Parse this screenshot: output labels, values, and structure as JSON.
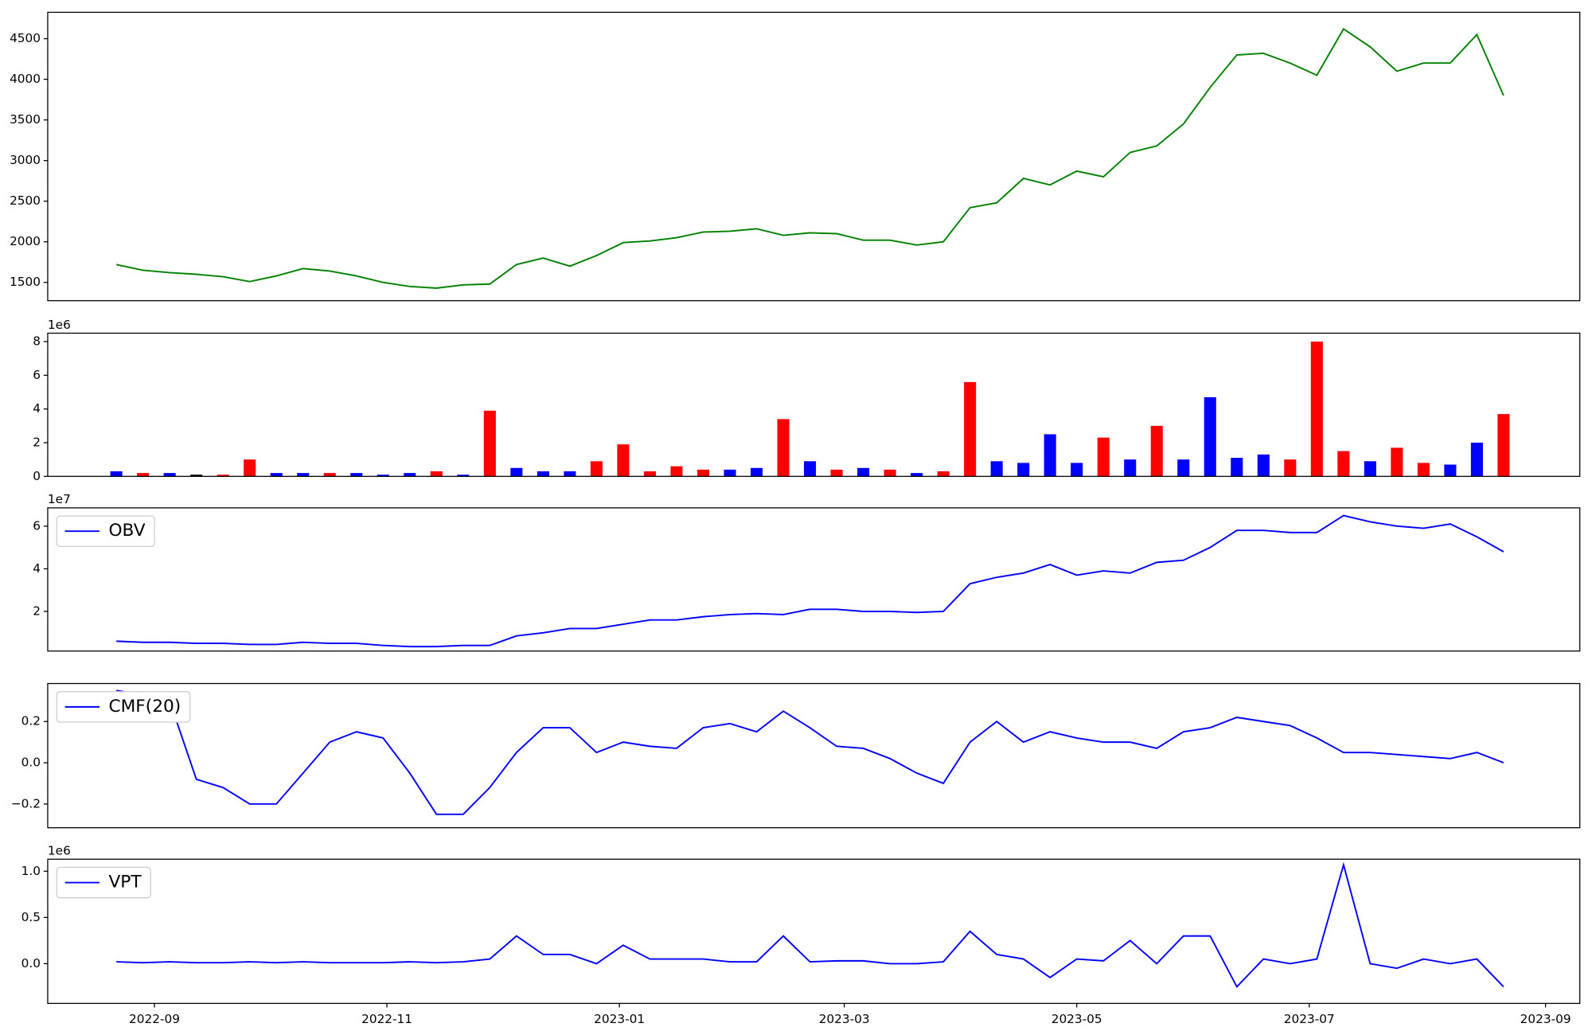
{
  "chart_data": [
    {
      "type": "line",
      "color": "green",
      "x": [
        19226,
        19233,
        19240,
        19247,
        19254,
        19261,
        19268,
        19275,
        19282,
        19289,
        19296,
        19303,
        19310,
        19317,
        19324,
        19331,
        19338,
        19345,
        19352,
        19359,
        19366,
        19373,
        19380,
        19387,
        19394,
        19401,
        19408,
        19415,
        19422,
        19429,
        19436,
        19443,
        19450,
        19457,
        19464,
        19471,
        19478,
        19485,
        19492,
        19499,
        19506,
        19513,
        19520,
        19527,
        19534,
        19541,
        19548,
        19555,
        19562,
        19569,
        19576,
        19583,
        19590
      ],
      "values": [
        1720,
        1650,
        1620,
        1600,
        1570,
        1510,
        1580,
        1670,
        1640,
        1580,
        1500,
        1450,
        1430,
        1470,
        1480,
        1720,
        1800,
        1700,
        1830,
        1990,
        2010,
        2050,
        2120,
        2130,
        2160,
        2080,
        2110,
        2100,
        2020,
        2020,
        1960,
        2000,
        2420,
        2480,
        2780,
        2700,
        2870,
        2800,
        3100,
        3180,
        3450,
        3900,
        4300,
        4320,
        4200,
        4050,
        4620,
        4400,
        4100,
        4200,
        4200,
        4550,
        3800
      ],
      "xlim": [
        19208,
        19610
      ],
      "ylim": [
        1275,
        4825
      ],
      "yticks": [
        1500,
        2000,
        2500,
        3000,
        3500,
        4000,
        4500
      ]
    },
    {
      "type": "bar",
      "y_multiplier": "1e6",
      "x": [
        19226,
        19233,
        19240,
        19247,
        19254,
        19261,
        19268,
        19275,
        19282,
        19289,
        19296,
        19303,
        19310,
        19317,
        19324,
        19331,
        19338,
        19345,
        19352,
        19359,
        19366,
        19373,
        19380,
        19387,
        19394,
        19401,
        19408,
        19415,
        19422,
        19429,
        19436,
        19443,
        19450,
        19457,
        19464,
        19471,
        19478,
        19485,
        19492,
        19499,
        19506,
        19513,
        19520,
        19527,
        19534,
        19541,
        19548,
        19555,
        19562,
        19569,
        19576,
        19583,
        19590
      ],
      "values": [
        0.3,
        0.2,
        0.2,
        0.1,
        0.1,
        1.0,
        0.2,
        0.2,
        0.2,
        0.2,
        0.1,
        0.2,
        0.3,
        0.1,
        3.9,
        0.5,
        0.3,
        0.3,
        0.9,
        1.9,
        0.3,
        0.6,
        0.4,
        0.4,
        0.5,
        3.4,
        0.9,
        0.4,
        0.5,
        0.4,
        0.2,
        0.3,
        5.6,
        0.9,
        0.8,
        2.5,
        0.8,
        2.3,
        1.0,
        3.0,
        1.0,
        4.7,
        1.1,
        1.3,
        1.0,
        8.0,
        1.5,
        0.9,
        1.7,
        0.8,
        0.7,
        2.0,
        3.7
      ],
      "colors": [
        "blue",
        "red",
        "blue",
        "black",
        "red",
        "red",
        "blue",
        "blue",
        "red",
        "blue",
        "blue",
        "blue",
        "red",
        "blue",
        "red",
        "blue",
        "blue",
        "blue",
        "red",
        "red",
        "red",
        "red",
        "red",
        "blue",
        "blue",
        "red",
        "blue",
        "red",
        "blue",
        "red",
        "blue",
        "red",
        "red",
        "blue",
        "blue",
        "blue",
        "blue",
        "red",
        "blue",
        "red",
        "blue",
        "blue",
        "blue",
        "blue",
        "red",
        "red",
        "red",
        "blue",
        "red",
        "red",
        "blue",
        "blue",
        "red"
      ],
      "xlim": [
        19208,
        19610
      ],
      "ylim": [
        0,
        8.5
      ],
      "yticks": [
        0,
        2,
        4,
        6,
        8
      ]
    },
    {
      "type": "line",
      "y_multiplier": "1e7",
      "legend": "upper left",
      "x": [
        19226,
        19233,
        19240,
        19247,
        19254,
        19261,
        19268,
        19275,
        19282,
        19289,
        19296,
        19303,
        19310,
        19317,
        19324,
        19331,
        19338,
        19345,
        19352,
        19359,
        19366,
        19373,
        19380,
        19387,
        19394,
        19401,
        19408,
        19415,
        19422,
        19429,
        19436,
        19443,
        19450,
        19457,
        19464,
        19471,
        19478,
        19485,
        19492,
        19499,
        19506,
        19513,
        19520,
        19527,
        19534,
        19541,
        19548,
        19555,
        19562,
        19569,
        19576,
        19583,
        19590
      ],
      "series": [
        {
          "name": "OBV",
          "color": "blue",
          "values": [
            0.6,
            0.55,
            0.55,
            0.5,
            0.5,
            0.45,
            0.45,
            0.55,
            0.5,
            0.5,
            0.4,
            0.35,
            0.35,
            0.4,
            0.4,
            0.85,
            1.0,
            1.2,
            1.2,
            1.4,
            1.6,
            1.6,
            1.75,
            1.85,
            1.9,
            1.85,
            2.1,
            2.1,
            2.0,
            2.0,
            1.95,
            2.0,
            3.3,
            3.6,
            3.8,
            4.2,
            3.7,
            3.9,
            3.8,
            4.3,
            4.4,
            5.0,
            5.8,
            5.8,
            5.7,
            5.7,
            6.5,
            6.2,
            6.0,
            5.9,
            6.1,
            5.5,
            4.8
          ]
        }
      ],
      "xlim": [
        19208,
        19610
      ],
      "ylim": [
        0.14,
        6.86
      ],
      "yticks": [
        2,
        4,
        6
      ]
    },
    {
      "type": "line",
      "legend": "upper left",
      "x": [
        19226,
        19233,
        19240,
        19247,
        19254,
        19261,
        19268,
        19275,
        19282,
        19289,
        19296,
        19303,
        19310,
        19317,
        19324,
        19331,
        19338,
        19345,
        19352,
        19359,
        19366,
        19373,
        19380,
        19387,
        19394,
        19401,
        19408,
        19415,
        19422,
        19429,
        19436,
        19443,
        19450,
        19457,
        19464,
        19471,
        19478,
        19485,
        19492,
        19499,
        19506,
        19513,
        19520,
        19527,
        19534,
        19541,
        19548,
        19555,
        19562,
        19569,
        19576,
        19583,
        19590
      ],
      "series": [
        {
          "name": "CMF(20)",
          "color": "blue",
          "values": [
            0.35,
            0.33,
            0.3,
            -0.08,
            -0.12,
            -0.2,
            -0.2,
            -0.05,
            0.1,
            0.15,
            0.12,
            -0.05,
            -0.25,
            -0.25,
            -0.12,
            0.05,
            0.17,
            0.17,
            0.05,
            0.1,
            0.08,
            0.07,
            0.17,
            0.19,
            0.15,
            0.25,
            0.17,
            0.08,
            0.07,
            0.02,
            -0.05,
            -0.1,
            0.1,
            0.2,
            0.1,
            0.15,
            0.12,
            0.1,
            0.1,
            0.07,
            0.15,
            0.17,
            0.22,
            0.2,
            0.18,
            0.12,
            0.05,
            0.05,
            0.04,
            0.03,
            0.02,
            0.05,
            0.0
          ]
        }
      ],
      "xlim": [
        19208,
        19610
      ],
      "ylim": [
        -0.315,
        0.384
      ],
      "yticks": [
        {
          "value": -0.2,
          "label": "−0.2"
        },
        {
          "value": 0,
          "label": "0.0"
        },
        {
          "value": 0.2,
          "label": "0.2"
        }
      ]
    },
    {
      "type": "line",
      "y_multiplier": "1e6",
      "legend": "upper left",
      "x": [
        19226,
        19233,
        19240,
        19247,
        19254,
        19261,
        19268,
        19275,
        19282,
        19289,
        19296,
        19303,
        19310,
        19317,
        19324,
        19331,
        19338,
        19345,
        19352,
        19359,
        19366,
        19373,
        19380,
        19387,
        19394,
        19401,
        19408,
        19415,
        19422,
        19429,
        19436,
        19443,
        19450,
        19457,
        19464,
        19471,
        19478,
        19485,
        19492,
        19499,
        19506,
        19513,
        19520,
        19527,
        19534,
        19541,
        19548,
        19555,
        19562,
        19569,
        19576,
        19583,
        19590
      ],
      "series": [
        {
          "name": "VPT",
          "color": "blue",
          "values": [
            0.02,
            0.01,
            0.02,
            0.01,
            0.01,
            0.02,
            0.01,
            0.02,
            0.01,
            0.01,
            0.01,
            0.02,
            0.01,
            0.02,
            0.05,
            0.3,
            0.1,
            0.1,
            0.0,
            0.2,
            0.05,
            0.05,
            0.05,
            0.02,
            0.02,
            0.3,
            0.02,
            0.03,
            0.03,
            0.0,
            0.0,
            0.02,
            0.35,
            0.1,
            0.05,
            -0.15,
            0.05,
            0.03,
            0.25,
            0.0,
            0.3,
            0.3,
            -0.25,
            0.05,
            0.0,
            0.05,
            1.07,
            0.0,
            -0.05,
            0.05,
            0.0,
            0.05,
            -0.25
          ]
        }
      ],
      "xlim": [
        19208,
        19610
      ],
      "ylim": [
        -0.43,
        1.13
      ],
      "yticks": [
        {
          "value": 0,
          "label": "0.0"
        },
        {
          "value": 0.5,
          "label": "0.5"
        },
        {
          "value": 1,
          "label": "1.0"
        }
      ],
      "xticks": [
        {
          "value": 19236,
          "label": "2022-09"
        },
        {
          "value": 19297,
          "label": "2022-11"
        },
        {
          "value": 19358,
          "label": "2023-01"
        },
        {
          "value": 19417,
          "label": "2023-03"
        },
        {
          "value": 19478,
          "label": "2023-05"
        },
        {
          "value": 19539,
          "label": "2023-07"
        },
        {
          "value": 19601,
          "label": "2023-09"
        }
      ]
    }
  ]
}
